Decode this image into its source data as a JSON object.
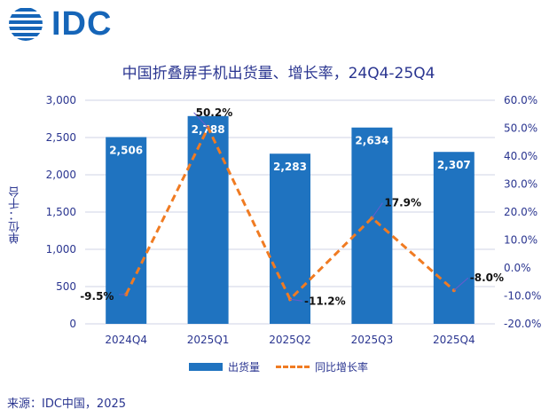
{
  "logo": {
    "text": "IDC"
  },
  "source": "来源：IDC中国，2025",
  "chart_data": {
    "type": "bar",
    "title": "中国折叠屏手机出货量、增长率，24Q4-25Q4",
    "ylabel": "单位：千台",
    "categories": [
      "2024Q4",
      "2025Q1",
      "2025Q2",
      "2025Q3",
      "2025Q4"
    ],
    "series": [
      {
        "name": "出货量",
        "type": "bar",
        "axis": "left",
        "values": [
          2506,
          2788,
          2283,
          2634,
          2307
        ],
        "labels": [
          "2,506",
          "2,788",
          "2,283",
          "2,634",
          "2,307"
        ]
      },
      {
        "name": "同比增长率",
        "type": "line",
        "axis": "right",
        "values": [
          -9.5,
          50.2,
          -11.2,
          17.9,
          -8.0
        ],
        "labels": [
          "-9.5%",
          "50.2%",
          "-11.2%",
          "17.9%",
          "-8.0%"
        ]
      }
    ],
    "ylim": [
      0,
      3000
    ],
    "y_ticks": [
      "0",
      "500",
      "1,000",
      "1,500",
      "2,000",
      "2,500",
      "3,000"
    ],
    "y_tick_values": [
      0,
      500,
      1000,
      1500,
      2000,
      2500,
      3000
    ],
    "y2lim": [
      -20,
      60
    ],
    "y2_ticks": [
      "-20.0%",
      "-10.0%",
      "0.0%",
      "10.0%",
      "20.0%",
      "30.0%",
      "40.0%",
      "50.0%",
      "60.0%"
    ],
    "y2_tick_values": [
      -20,
      -10,
      0,
      10,
      20,
      30,
      40,
      50,
      60
    ],
    "grid": true,
    "legend": "bottom",
    "colors": {
      "bar": "#1f73c0",
      "line": "#f07b22",
      "text": "#2a3590",
      "grid": "#cfd3e6"
    }
  }
}
